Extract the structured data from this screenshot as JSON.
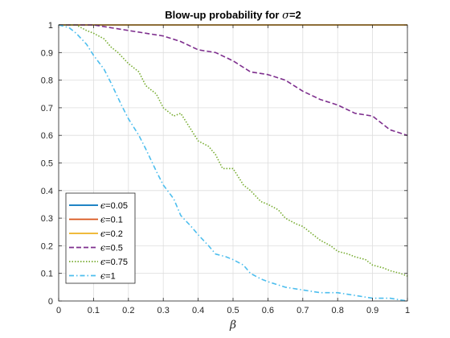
{
  "chart_data": {
    "type": "line",
    "title": "Blow-up probability for σ=2",
    "title_prefix": "Blow-up probability for ",
    "title_symbol": "σ",
    "title_suffix": "=2",
    "xlabel": "β",
    "ylabel": "",
    "xlim": [
      0,
      1
    ],
    "ylim": [
      0,
      1
    ],
    "xticks": [
      0,
      0.1,
      0.2,
      0.3,
      0.4,
      0.5,
      0.6,
      0.7,
      0.8,
      0.9,
      1
    ],
    "xtick_labels": [
      "0",
      "0.1",
      "0.2",
      "0.3",
      "0.4",
      "0.5",
      "0.6",
      "0.7",
      "0.8",
      "0.9",
      "1"
    ],
    "yticks": [
      0,
      0.1,
      0.2,
      0.3,
      0.4,
      0.5,
      0.6,
      0.7,
      0.8,
      0.9,
      1
    ],
    "ytick_labels": [
      "0",
      "0.1",
      "0.2",
      "0.3",
      "0.4",
      "0.5",
      "0.6",
      "0.7",
      "0.8",
      "0.9",
      "1"
    ],
    "grid": true,
    "legend_position": "bottom-left",
    "series": [
      {
        "name": "ϵ=0.05",
        "symbol": "ϵ",
        "value_label": "=0.05",
        "color": "#0072BD",
        "style": "solid",
        "x": [
          0,
          1
        ],
        "y": [
          1,
          1
        ]
      },
      {
        "name": "ϵ=0.1",
        "symbol": "ϵ",
        "value_label": "=0.1",
        "color": "#D95319",
        "style": "solid",
        "x": [
          0,
          1
        ],
        "y": [
          1,
          1
        ]
      },
      {
        "name": "ϵ=0.2",
        "symbol": "ϵ",
        "value_label": "=0.2",
        "color": "#EDB120",
        "style": "solid",
        "x": [
          0,
          1
        ],
        "y": [
          1,
          1
        ]
      },
      {
        "name": "ϵ=0.5",
        "symbol": "ϵ",
        "value_label": "=0.5",
        "color": "#7E2F8E",
        "style": "dashed",
        "x": [
          0,
          0.05,
          0.1,
          0.15,
          0.2,
          0.25,
          0.3,
          0.35,
          0.4,
          0.45,
          0.5,
          0.55,
          0.6,
          0.65,
          0.7,
          0.75,
          0.8,
          0.85,
          0.9,
          0.95,
          1
        ],
        "y": [
          1.0,
          1.0,
          1.0,
          0.99,
          0.98,
          0.97,
          0.96,
          0.94,
          0.91,
          0.9,
          0.87,
          0.83,
          0.82,
          0.8,
          0.76,
          0.73,
          0.71,
          0.68,
          0.67,
          0.62,
          0.6
        ]
      },
      {
        "name": "ϵ=0.75",
        "symbol": "ϵ",
        "value_label": "=0.75",
        "color": "#77AC30",
        "style": "dotted",
        "x": [
          0,
          0.05,
          0.08,
          0.1,
          0.13,
          0.15,
          0.17,
          0.2,
          0.23,
          0.25,
          0.28,
          0.3,
          0.33,
          0.35,
          0.38,
          0.4,
          0.43,
          0.45,
          0.47,
          0.5,
          0.53,
          0.55,
          0.58,
          0.6,
          0.63,
          0.65,
          0.68,
          0.7,
          0.73,
          0.75,
          0.78,
          0.8,
          0.83,
          0.85,
          0.88,
          0.9,
          0.93,
          0.95,
          0.98,
          1
        ],
        "y": [
          1.0,
          1.0,
          0.98,
          0.97,
          0.95,
          0.92,
          0.9,
          0.86,
          0.83,
          0.78,
          0.75,
          0.7,
          0.67,
          0.68,
          0.62,
          0.58,
          0.56,
          0.53,
          0.48,
          0.48,
          0.42,
          0.4,
          0.36,
          0.35,
          0.33,
          0.3,
          0.28,
          0.27,
          0.24,
          0.22,
          0.2,
          0.18,
          0.17,
          0.16,
          0.15,
          0.13,
          0.12,
          0.11,
          0.1,
          0.09
        ]
      },
      {
        "name": "ϵ=1",
        "symbol": "ϵ",
        "value_label": "=1",
        "color": "#4DBEEE",
        "style": "dashdot",
        "x": [
          0,
          0.03,
          0.05,
          0.08,
          0.1,
          0.13,
          0.15,
          0.18,
          0.2,
          0.23,
          0.25,
          0.28,
          0.3,
          0.33,
          0.35,
          0.38,
          0.4,
          0.43,
          0.45,
          0.48,
          0.5,
          0.53,
          0.55,
          0.58,
          0.6,
          0.65,
          0.7,
          0.75,
          0.8,
          0.85,
          0.9,
          0.95,
          1
        ],
        "y": [
          1.0,
          0.99,
          0.97,
          0.93,
          0.89,
          0.84,
          0.79,
          0.71,
          0.66,
          0.6,
          0.55,
          0.47,
          0.42,
          0.37,
          0.31,
          0.27,
          0.24,
          0.2,
          0.17,
          0.16,
          0.15,
          0.13,
          0.1,
          0.08,
          0.07,
          0.05,
          0.04,
          0.03,
          0.03,
          0.02,
          0.01,
          0.01,
          0.0
        ]
      }
    ]
  }
}
